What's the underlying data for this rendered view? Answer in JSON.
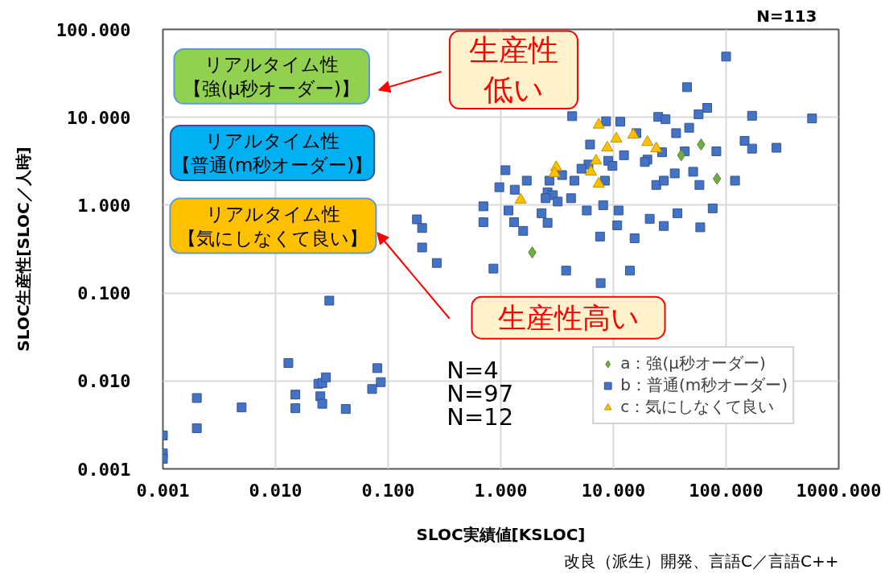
{
  "chart_data": {
    "type": "scatter",
    "xlabel": "SLOC実績値[KSLOC]",
    "ylabel": "SLOC生産性[SLOC／人時]",
    "log": "xy",
    "xlim": [
      0.001,
      1000
    ],
    "ylim": [
      0.001,
      100
    ],
    "xticks": [
      0.001,
      {
        "value": 0.01,
        "label": "0.010"
      },
      {
        "value": 0.1,
        "label": "0.100"
      },
      {
        "value": 1,
        "label": "1.000"
      },
      {
        "value": 10,
        "label": "10.000"
      },
      {
        "value": 100,
        "label": "100.000"
      },
      {
        "value": 1000,
        "label": "1000.000"
      }
    ],
    "yticks": [
      0.001,
      {
        "value": 0.01,
        "label": "0.010"
      },
      {
        "value": 0.1,
        "label": "0.100"
      },
      {
        "value": 1,
        "label": "1.000"
      },
      {
        "value": 10,
        "label": "10.000"
      },
      {
        "value": 100,
        "label": "100.000"
      }
    ],
    "grid": true,
    "legend": "bottom right",
    "series": [
      {
        "name": "a：強(μ秒オーダー)",
        "color": "#70ad47",
        "marker": "diamond",
        "x": [
          60,
          40,
          83,
          1.9
        ],
        "values": [
          4.9,
          3.7,
          2.0,
          0.29
        ]
      },
      {
        "name": "b：普通(m秒オーダー)",
        "color": "#4472c4",
        "marker": "square",
        "x": [
          0.03,
          0.013,
          0.002,
          0.002,
          0.001,
          0.001,
          0.001,
          0.005,
          0.015,
          0.015,
          0.024,
          0.026,
          0.028,
          0.025,
          0.026,
          0.042,
          0.08,
          0.086,
          0.072,
          0.18,
          0.2,
          0.2,
          0.27,
          0.7,
          0.7,
          0.86,
          3.8,
          7.7,
          14,
          100,
          45,
          68,
          57,
          25,
          29,
          170,
          580,
          4.3,
          8.6,
          11.5,
          36,
          47,
          16,
          6.2,
          146,
          170,
          280,
          82,
          43,
          27,
          12.4,
          20,
          19,
          9.0,
          9.8,
          6.0,
          5.2,
          1.1,
          1.7,
          0.97,
          1.33,
          2.7,
          3.5,
          4.5,
          8.4,
          2.6,
          2.9,
          2.5,
          3.2,
          4.2,
          24,
          28,
          35,
          51,
          58,
          120,
          1.17,
          1.31,
          1.58,
          2.3,
          2.6,
          5.8,
          8.1,
          11.1,
          10.8,
          7.6,
          15.4,
          21,
          28,
          37,
          59,
          76
        ],
        "values": [
          0.082,
          0.016,
          0.0064,
          0.0029,
          0.0024,
          0.0015,
          0.0013,
          0.005,
          0.007,
          0.0049,
          0.0093,
          0.0095,
          0.011,
          0.0067,
          0.0055,
          0.0048,
          0.014,
          0.0097,
          0.0081,
          0.69,
          0.55,
          0.33,
          0.22,
          0.97,
          0.64,
          0.19,
          0.18,
          0.13,
          0.18,
          49,
          22,
          12.8,
          10.8,
          10.1,
          9.5,
          10.4,
          9.7,
          10.3,
          9.0,
          8.9,
          6.6,
          7.6,
          6.6,
          4.9,
          5.4,
          4.4,
          4.5,
          4.1,
          4.1,
          4.0,
          3.7,
          3.3,
          3.1,
          3.2,
          2.8,
          2.9,
          2.6,
          2.5,
          1.9,
          1.6,
          1.5,
          1.9,
          2.2,
          1.9,
          1.9,
          1.4,
          1.3,
          1.2,
          1.1,
          1.2,
          1.7,
          1.9,
          2.3,
          2.4,
          1.7,
          1.9,
          0.87,
          0.64,
          0.51,
          0.81,
          0.63,
          0.87,
          1.0,
          0.87,
          0.59,
          0.44,
          0.42,
          0.7,
          0.58,
          0.81,
          0.56,
          0.92
        ]
      },
      {
        "name": "c：気にしなくて良い",
        "color": "#ffc000",
        "marker": "triangle",
        "x": [
          7.4,
          10.6,
          15,
          20,
          24,
          8.8,
          7.0,
          6.3,
          7.4,
          3.1,
          3.0,
          1.5
        ],
        "values": [
          8.2,
          5.7,
          6.3,
          5.2,
          4.4,
          4.5,
          3.2,
          2.4,
          1.75,
          2.7,
          2.3,
          1.15
        ]
      }
    ],
    "annotations": [
      "リアルタイム性【強(μ秒オーダー)】",
      "リアルタイム性【普通(m秒オーダー)】",
      "リアルタイム性【気にしなくて良い】",
      "生産性低い",
      "生産性高い",
      "N=4",
      "N=97",
      "N=12",
      "N=113",
      "改良（派生）開発、言語C／言語C++"
    ]
  }
}
